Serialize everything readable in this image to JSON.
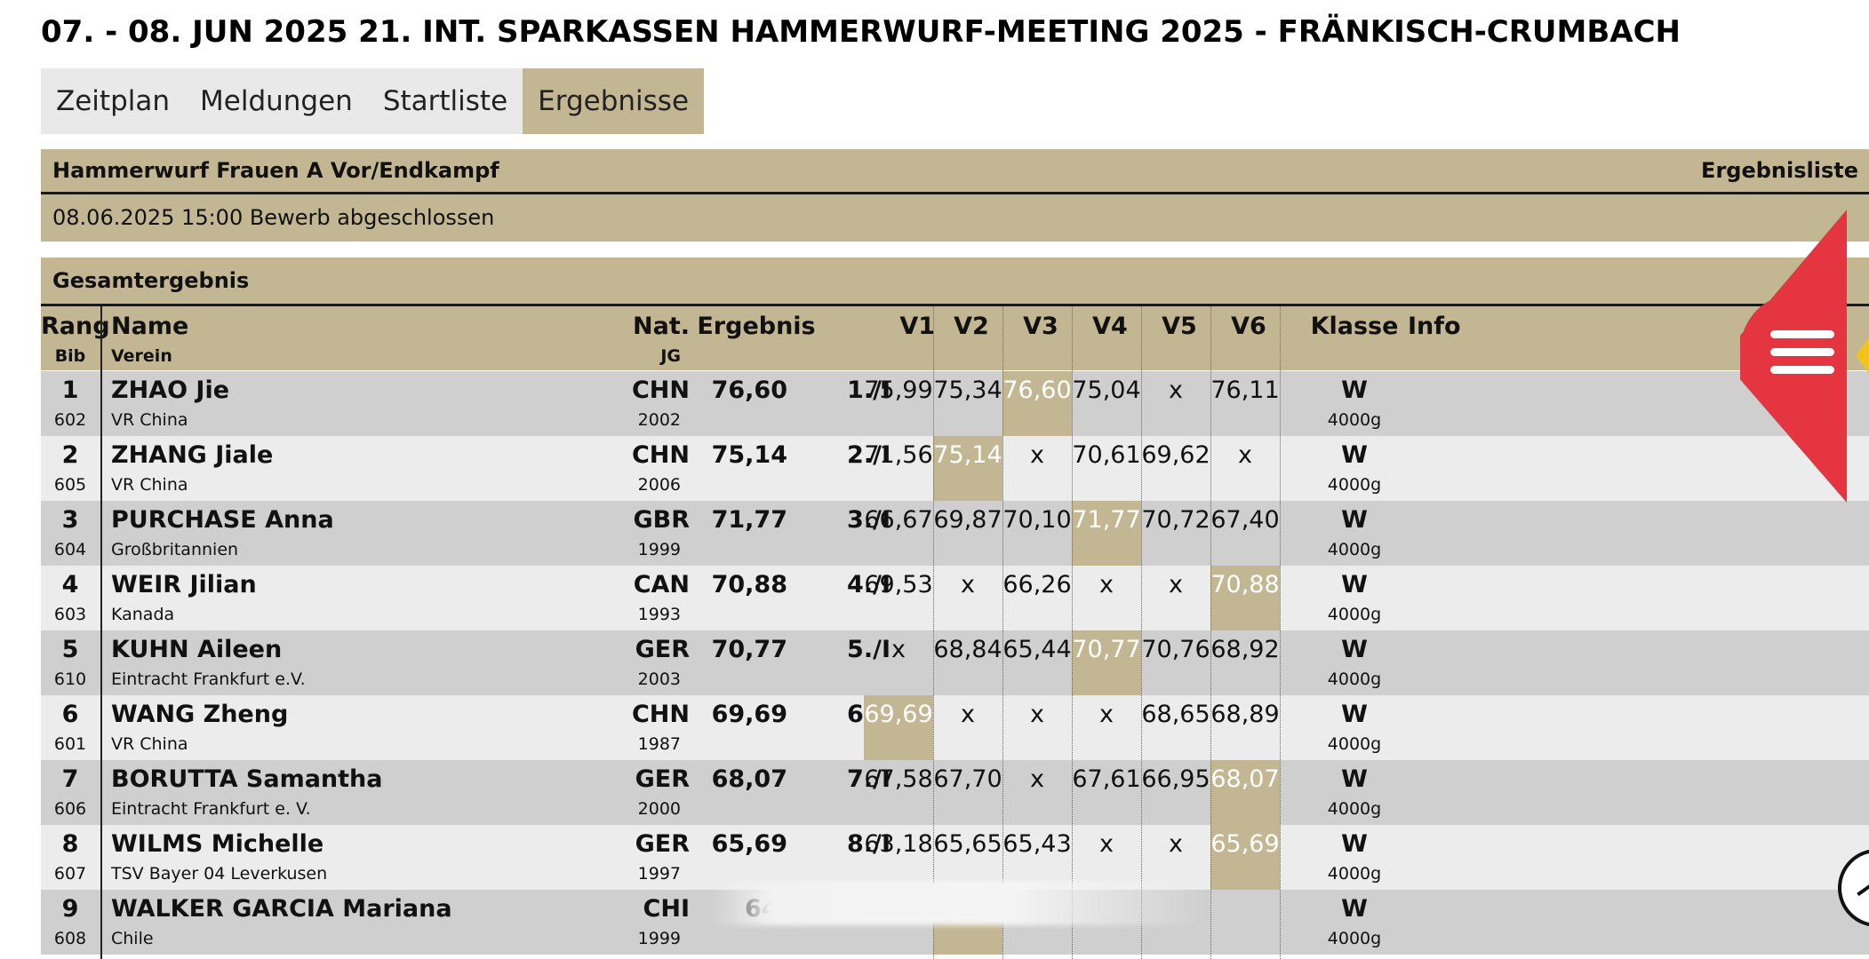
{
  "title": "07. - 08. JUN 2025 21. INT. SPARKASSEN HAMMERWURF-MEETING 2025 - FRÄNKISCH-CRUMBACH",
  "tabs": [
    {
      "label": "Zeitplan",
      "active": false
    },
    {
      "label": "Meldungen",
      "active": false
    },
    {
      "label": "Startliste",
      "active": false
    },
    {
      "label": "Ergebnisse",
      "active": true
    }
  ],
  "event": {
    "name": "Hammerwurf Frauen A Vor/Endkampf",
    "list_type": "Ergebnisliste",
    "status": "08.06.2025 15:00 Bewerb abgeschlossen",
    "section": "Gesamtergebnis"
  },
  "headers": {
    "rang": "Rang",
    "bib": "Bib",
    "name": "Name",
    "verein": "Verein",
    "nat": "Nat.",
    "jg": "JG",
    "ergebnis": "Ergebnis",
    "v1": "V1",
    "v2": "V2",
    "v3": "V3",
    "v4": "V4",
    "v5": "V5",
    "v6": "V6",
    "klasse": "Klasse",
    "info": "Info"
  },
  "rows": [
    {
      "rang": "1",
      "bib": "602",
      "name": "ZHAO Jie",
      "verein": "VR China",
      "nat": "CHN",
      "jg": "2002",
      "ergebnis": "76,60",
      "place": "1./I",
      "attempts": [
        "75,99",
        "75,34",
        "76,60",
        "75,04",
        "x",
        "76,11"
      ],
      "best": 2,
      "klasse": "W",
      "weight": "4000g"
    },
    {
      "rang": "2",
      "bib": "605",
      "name": "ZHANG Jiale",
      "verein": "VR China",
      "nat": "CHN",
      "jg": "2006",
      "ergebnis": "75,14",
      "place": "2./I",
      "attempts": [
        "71,56",
        "75,14",
        "x",
        "70,61",
        "69,62",
        "x"
      ],
      "best": 1,
      "klasse": "W",
      "weight": "4000g"
    },
    {
      "rang": "3",
      "bib": "604",
      "name": "PURCHASE Anna",
      "verein": "Großbritannien",
      "nat": "GBR",
      "jg": "1999",
      "ergebnis": "71,77",
      "place": "3./I",
      "attempts": [
        "66,67",
        "69,87",
        "70,10",
        "71,77",
        "70,72",
        "67,40"
      ],
      "best": 3,
      "klasse": "W",
      "weight": "4000g"
    },
    {
      "rang": "4",
      "bib": "603",
      "name": "WEIR Jilian",
      "verein": "Kanada",
      "nat": "CAN",
      "jg": "1993",
      "ergebnis": "70,88",
      "place": "4./I",
      "attempts": [
        "69,53",
        "x",
        "66,26",
        "x",
        "x",
        "70,88"
      ],
      "best": 5,
      "klasse": "W",
      "weight": "4000g"
    },
    {
      "rang": "5",
      "bib": "610",
      "name": "KUHN Aileen",
      "verein": "Eintracht Frankfurt e.V.",
      "nat": "GER",
      "jg": "2003",
      "ergebnis": "70,77",
      "place": "5./I",
      "attempts": [
        "x",
        "68,84",
        "65,44",
        "70,77",
        "70,76",
        "68,92"
      ],
      "best": 3,
      "klasse": "W",
      "weight": "4000g"
    },
    {
      "rang": "6",
      "bib": "601",
      "name": "WANG Zheng",
      "verein": "VR China",
      "nat": "CHN",
      "jg": "1987",
      "ergebnis": "69,69",
      "place": "6./I",
      "attempts": [
        "69,69",
        "x",
        "x",
        "x",
        "68,65",
        "68,89"
      ],
      "best": 0,
      "klasse": "W",
      "weight": "4000g"
    },
    {
      "rang": "7",
      "bib": "606",
      "name": "BORUTTA Samantha",
      "verein": "Eintracht Frankfurt e. V.",
      "nat": "GER",
      "jg": "2000",
      "ergebnis": "68,07",
      "place": "7./I",
      "attempts": [
        "67,58",
        "67,70",
        "x",
        "67,61",
        "66,95",
        "68,07"
      ],
      "best": 5,
      "klasse": "W",
      "weight": "4000g"
    },
    {
      "rang": "8",
      "bib": "607",
      "name": "WILMS Michelle",
      "verein": "TSV Bayer 04 Leverkusen",
      "nat": "GER",
      "jg": "1997",
      "ergebnis": "65,69",
      "place": "8./I",
      "attempts": [
        "63,18",
        "65,65",
        "65,43",
        "x",
        "x",
        "65,69"
      ],
      "best": 5,
      "klasse": "W",
      "weight": "4000g"
    },
    {
      "rang": "9",
      "bib": "608",
      "name": "WALKER GARCIA Mariana",
      "verein": "Chile",
      "nat": "CHI",
      "jg": "1999",
      "ergebnis": "64,",
      "place": "",
      "attempts": [
        "",
        "",
        "",
        "",
        "",
        ""
      ],
      "best": 1,
      "klasse": "W",
      "weight": "4000g"
    }
  ],
  "colors": {
    "accent": "#c3b793",
    "row_dark": "#cfcfcf",
    "row_light": "#ececec",
    "menu": "#e53540",
    "menu_tip": "#f2c318"
  },
  "icons": {
    "menu": "hamburger-menu-icon",
    "scroll": "scroll-button-icon"
  }
}
